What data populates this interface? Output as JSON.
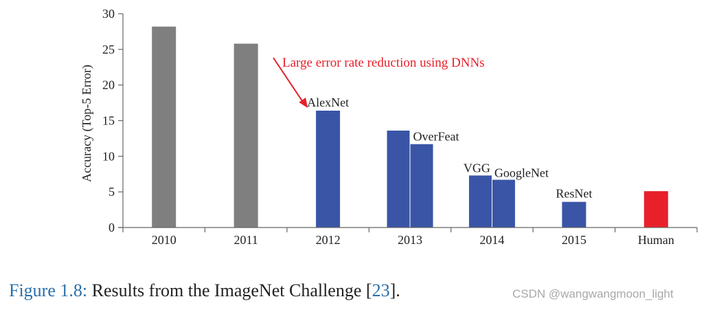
{
  "chart_data": {
    "type": "bar",
    "ylabel": "Accuracy (Top-5 Error)",
    "ylim": [
      0,
      30
    ],
    "yticks": [
      0,
      5,
      10,
      15,
      20,
      25,
      30
    ],
    "grid": false,
    "categories": [
      "2010",
      "2011",
      "2012",
      "2013",
      "2014",
      "2015",
      "Human"
    ],
    "bars": [
      {
        "category": "2010",
        "slot": 0,
        "value": 28.2,
        "label": "",
        "color": "#7f7f7f"
      },
      {
        "category": "2011",
        "slot": 0,
        "value": 25.8,
        "label": "",
        "color": "#7f7f7f"
      },
      {
        "category": "2012",
        "slot": 0,
        "value": 16.4,
        "label": "AlexNet",
        "color": "#3a55a6"
      },
      {
        "category": "2013",
        "slot": -1,
        "value": 13.6,
        "label": "",
        "color": "#3a55a6"
      },
      {
        "category": "2013",
        "slot": 1,
        "value": 11.7,
        "label": "OverFeat",
        "color": "#3a55a6"
      },
      {
        "category": "2014",
        "slot": -1,
        "value": 7.3,
        "label": "VGG",
        "color": "#3a55a6"
      },
      {
        "category": "2014",
        "slot": 1,
        "value": 6.7,
        "label": "GoogleNet",
        "color": "#3a55a6"
      },
      {
        "category": "2015",
        "slot": 0,
        "value": 3.6,
        "label": "ResNet",
        "color": "#3a55a6"
      },
      {
        "category": "Human",
        "slot": 0,
        "value": 5.1,
        "label": "",
        "color": "#e8202a"
      }
    ],
    "annotation": {
      "text": "Large error rate reduction using DNNs",
      "color": "#e8202a",
      "points_to": "AlexNet"
    }
  },
  "caption": {
    "figure_label": "Figure 1.8:",
    "text": " Results from the ImageNet Challenge [",
    "ref": "23",
    "tail": "]."
  },
  "watermark": "CSDN @wangwangmoon_light"
}
